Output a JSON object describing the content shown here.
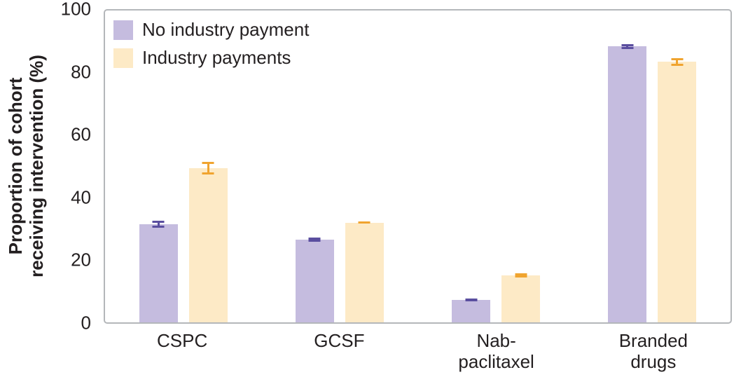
{
  "chart_data": {
    "type": "bar",
    "title": "",
    "ylabel": "Proportion of cohort\nreceiving intervention (%)",
    "xlabel": "",
    "ylim": [
      0,
      100
    ],
    "yticks": [
      0,
      20,
      40,
      60,
      80,
      100
    ],
    "categories": [
      "CSPC",
      "GCSF",
      "Nab-\npaclitaxel",
      "Branded\ndrugs"
    ],
    "series": [
      {
        "name": "No industry payment",
        "color": "#c5bcdf",
        "error_color": "#5a4e9f",
        "values": [
          31.5,
          26.5,
          7.2,
          88.5
        ],
        "errors": [
          1.2,
          0.6,
          0.5,
          0.8
        ]
      },
      {
        "name": "Industry payments",
        "color": "#fdeac6",
        "error_color": "#f0a42f",
        "values": [
          49.5,
          32.0,
          15.0,
          83.5
        ],
        "errors": [
          2.0,
          0.4,
          0.7,
          1.3
        ]
      }
    ],
    "legend_position": "top-left",
    "grid": false,
    "plot_border_color": "#b4b7ba",
    "text_color": "#231f20"
  }
}
